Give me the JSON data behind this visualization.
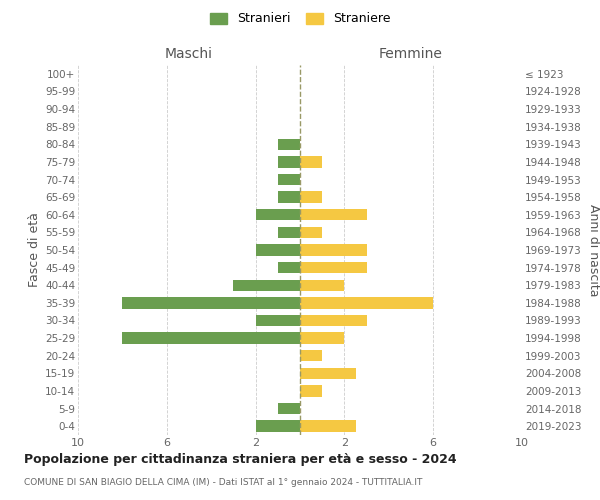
{
  "age_groups": [
    "100+",
    "95-99",
    "90-94",
    "85-89",
    "80-84",
    "75-79",
    "70-74",
    "65-69",
    "60-64",
    "55-59",
    "50-54",
    "45-49",
    "40-44",
    "35-39",
    "30-34",
    "25-29",
    "20-24",
    "15-19",
    "10-14",
    "5-9",
    "0-4"
  ],
  "birth_years": [
    "≤ 1923",
    "1924-1928",
    "1929-1933",
    "1934-1938",
    "1939-1943",
    "1944-1948",
    "1949-1953",
    "1954-1958",
    "1959-1963",
    "1964-1968",
    "1969-1973",
    "1974-1978",
    "1979-1983",
    "1984-1988",
    "1989-1993",
    "1994-1998",
    "1999-2003",
    "2004-2008",
    "2009-2013",
    "2014-2018",
    "2019-2023"
  ],
  "maschi": [
    0,
    0,
    0,
    0,
    1,
    1,
    1,
    1,
    2,
    1,
    2,
    1,
    3,
    8,
    2,
    8,
    0,
    0,
    0,
    1,
    2
  ],
  "femmine": [
    0,
    0,
    0,
    0,
    0,
    1,
    0,
    1,
    3,
    1,
    3,
    3,
    2,
    6,
    3,
    2,
    1,
    2.5,
    1,
    0,
    2.5
  ],
  "color_maschi": "#6a9e4f",
  "color_femmine": "#f5c842",
  "title": "Popolazione per cittadinanza straniera per età e sesso - 2024",
  "subtitle": "COMUNE DI SAN BIAGIO DELLA CIMA (IM) - Dati ISTAT al 1° gennaio 2024 - TUTTITALIA.IT",
  "xlabel_left": "Maschi",
  "xlabel_right": "Femmine",
  "ylabel_left": "Fasce di età",
  "ylabel_right": "Anni di nascita",
  "legend_stranieri": "Stranieri",
  "legend_straniere": "Straniere",
  "xlim": 10,
  "bg_color": "#ffffff",
  "grid_color": "#cccccc"
}
